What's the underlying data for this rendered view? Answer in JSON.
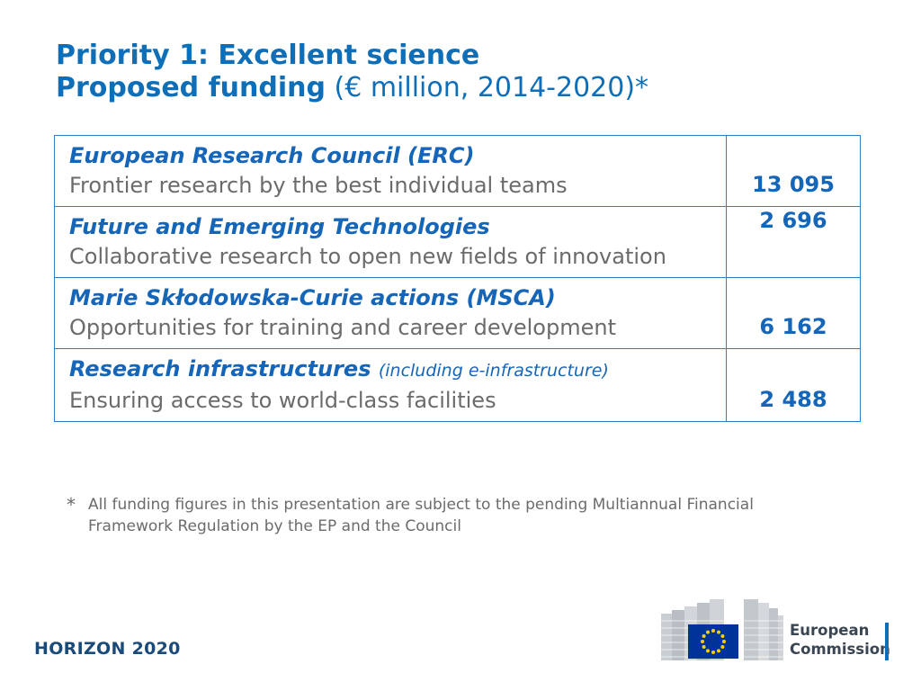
{
  "title": {
    "line1": "Priority 1: Excellent science",
    "line2_bold": "Proposed funding",
    "line2_normal": " (€ million, 2014-2020)*"
  },
  "rows": [
    {
      "name": "European Research Council (ERC)",
      "note": "",
      "description": "Frontier research by the best individual teams",
      "amount": "13 095"
    },
    {
      "name": "Future and Emerging Technologies",
      "note": "",
      "description": "Collaborative research to open new fields of innovation",
      "amount": "2 696"
    },
    {
      "name": "Marie Skłodowska-Curie actions (MSCA)",
      "note": "",
      "description": "Opportunities for training and career development",
      "amount": "6 162"
    },
    {
      "name": "Research infrastructures",
      "note": "(including e-infrastructure)",
      "description": "Ensuring access to world-class facilities",
      "amount": "2 488"
    }
  ],
  "footnote": {
    "marker": "*",
    "text": "All funding figures in this presentation are subject to the pending Multiannual Financial Framework Regulation by the EP and the Council"
  },
  "branding": {
    "program": "HORIZON 2020",
    "ec_line1": "European",
    "ec_line2": "Commission"
  },
  "colors": {
    "accent": "#0e6fb8",
    "table_border": "#2c80c8",
    "text_gray": "#6b6b6b",
    "eu_flag_blue": "#003399",
    "eu_star_yellow": "#ffcc00"
  }
}
